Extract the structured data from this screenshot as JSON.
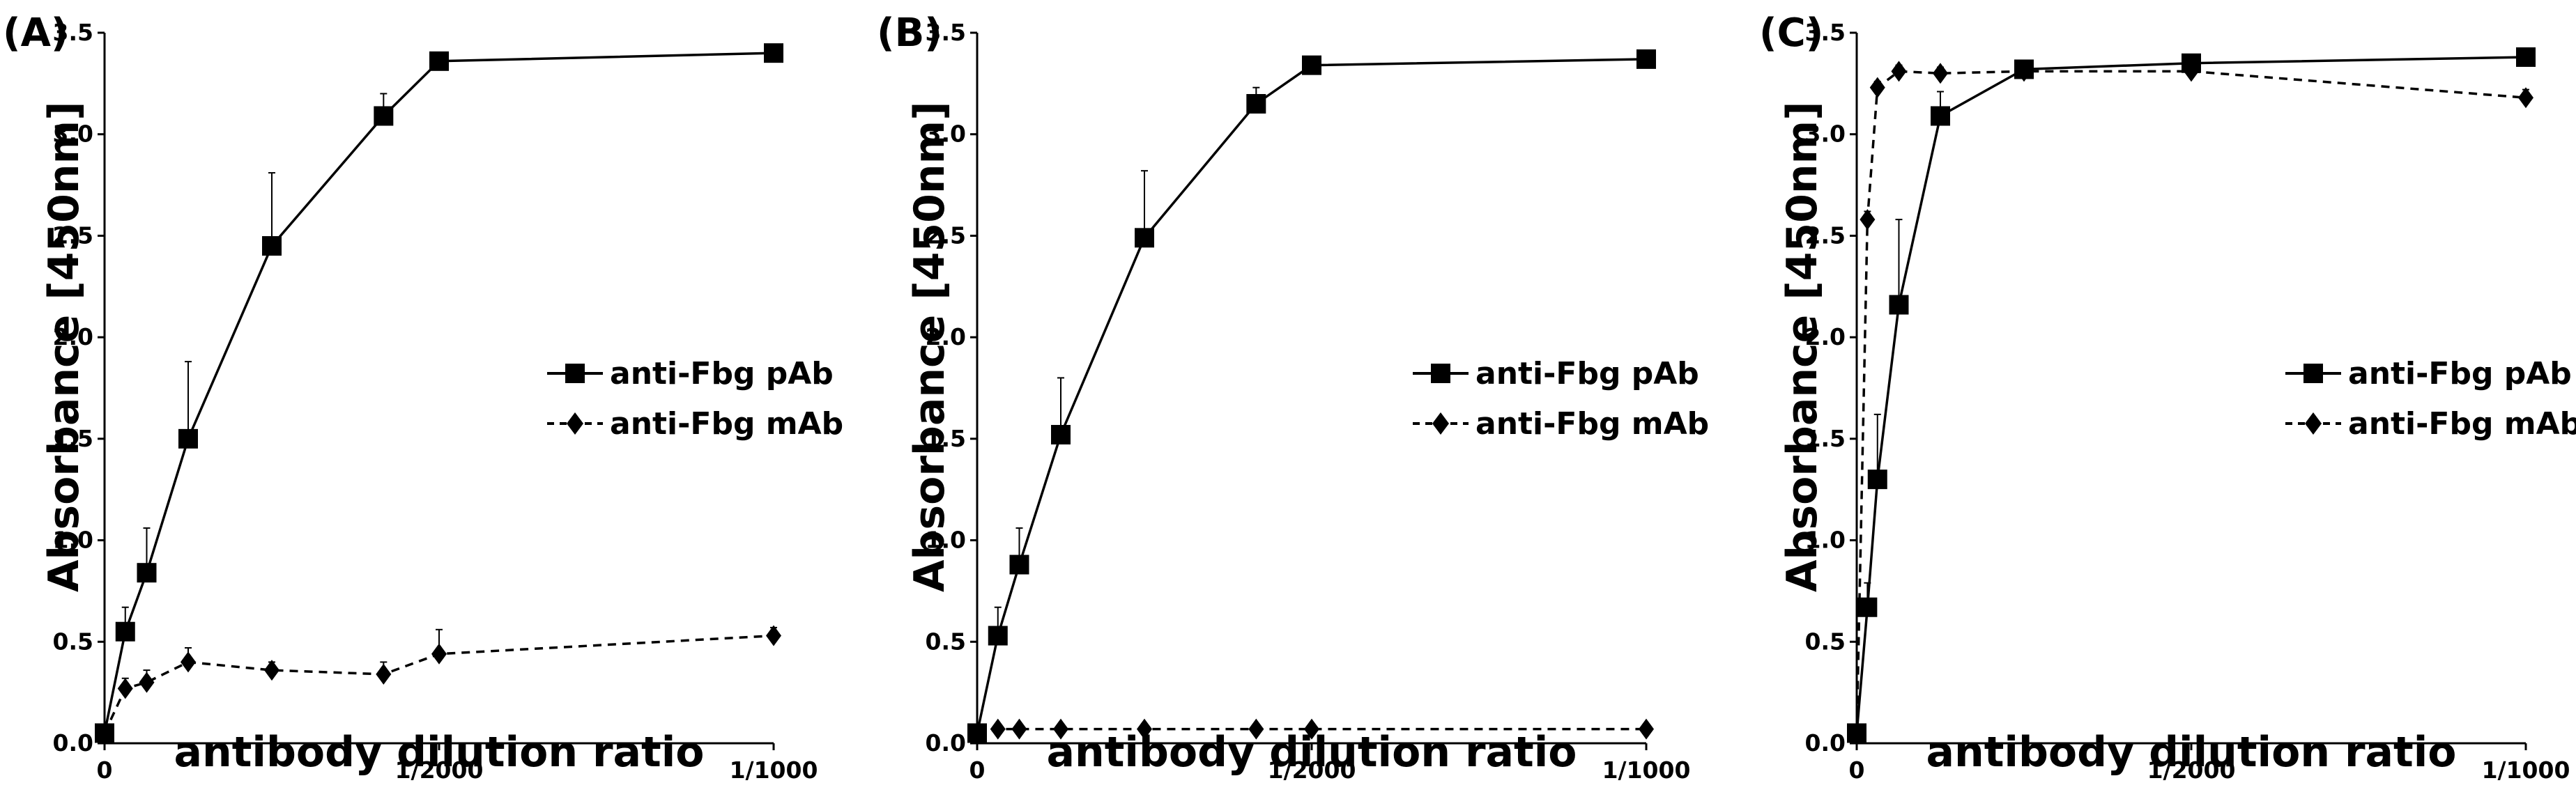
{
  "chart_data": [
    {
      "panel": "(A)",
      "type": "line",
      "ylabel": "Absorbance [450nm]",
      "xlabel": "antibody dilution ratio",
      "ylim": [
        0,
        3.5
      ],
      "yticks": [
        "0.0",
        "0.5",
        "1.0",
        "1.5",
        "2.0",
        "2.5",
        "3.0",
        "3.5"
      ],
      "xlim": [
        0,
        0.001
      ],
      "xticks": [
        {
          "v": 0,
          "label": "0"
        },
        {
          "v": 0.0005,
          "label": "1/2000"
        },
        {
          "v": 0.001,
          "label": "1/1000"
        }
      ],
      "legend_position": "right",
      "series": [
        {
          "name": "anti-Fbg pAb",
          "marker": "square",
          "dash": false,
          "x": [
            0,
            3.1e-05,
            6.3e-05,
            0.000125,
            0.00025,
            0.000417,
            0.0005,
            0.001
          ],
          "y": [
            0.05,
            0.55,
            0.84,
            1.5,
            2.45,
            3.09,
            3.36,
            3.4
          ],
          "err": [
            0.02,
            0.12,
            0.22,
            0.38,
            0.36,
            0.11,
            0.04,
            0.03
          ]
        },
        {
          "name": "anti-Fbg mAb",
          "marker": "diamond",
          "dash": true,
          "x": [
            0,
            3.1e-05,
            6.3e-05,
            0.000125,
            0.00025,
            0.000417,
            0.0005,
            0.001
          ],
          "y": [
            0.05,
            0.27,
            0.3,
            0.4,
            0.36,
            0.34,
            0.44,
            0.53
          ],
          "err": [
            0.02,
            0.05,
            0.06,
            0.07,
            0.04,
            0.06,
            0.12,
            0.04
          ]
        }
      ]
    },
    {
      "panel": "(B)",
      "type": "line",
      "ylabel": "Absorbance [450nm]",
      "xlabel": "antibody dilution ratio",
      "ylim": [
        0,
        3.5
      ],
      "yticks": [
        "0.0",
        "0.5",
        "1.0",
        "1.5",
        "2.0",
        "2.5",
        "3.0",
        "3.5"
      ],
      "xlim": [
        0,
        0.001
      ],
      "xticks": [
        {
          "v": 0,
          "label": "0"
        },
        {
          "v": 0.0005,
          "label": "1/2000"
        },
        {
          "v": 0.001,
          "label": "1/1000"
        }
      ],
      "legend_position": "right",
      "series": [
        {
          "name": "anti-Fbg pAb",
          "marker": "square",
          "dash": false,
          "x": [
            0,
            3.1e-05,
            6.3e-05,
            0.000125,
            0.00025,
            0.000417,
            0.0005,
            0.001
          ],
          "y": [
            0.05,
            0.53,
            0.88,
            1.52,
            2.49,
            3.15,
            3.34,
            3.37
          ],
          "err": [
            0.02,
            0.14,
            0.18,
            0.28,
            0.33,
            0.08,
            0.03,
            0.02
          ]
        },
        {
          "name": "anti-Fbg mAb",
          "marker": "diamond",
          "dash": true,
          "x": [
            0,
            3.1e-05,
            6.3e-05,
            0.000125,
            0.00025,
            0.000417,
            0.0005,
            0.001
          ],
          "y": [
            0.05,
            0.07,
            0.07,
            0.07,
            0.07,
            0.07,
            0.07,
            0.07
          ],
          "err": [
            0.01,
            0.01,
            0.01,
            0.01,
            0.01,
            0.01,
            0.01,
            0.01
          ]
        }
      ]
    },
    {
      "panel": "(C)",
      "type": "line",
      "ylabel": "Absorbance [450nm]",
      "xlabel": "antibody dilution ratio",
      "ylim": [
        0,
        3.5
      ],
      "yticks": [
        "0.0",
        "0.5",
        "1.0",
        "1.5",
        "2.0",
        "2.5",
        "3.0",
        "3.5"
      ],
      "xlim": [
        0,
        0.001
      ],
      "xticks": [
        {
          "v": 0,
          "label": "0"
        },
        {
          "v": 0.0005,
          "label": "1/2000"
        },
        {
          "v": 0.001,
          "label": "1/1000"
        }
      ],
      "legend_position": "right",
      "series": [
        {
          "name": "anti-Fbg pAb",
          "marker": "square",
          "dash": false,
          "x": [
            0,
            1.6e-05,
            3.1e-05,
            6.3e-05,
            0.000125,
            0.00025,
            0.0005,
            0.001
          ],
          "y": [
            0.05,
            0.67,
            1.3,
            2.16,
            3.09,
            3.32,
            3.35,
            3.38
          ],
          "err": [
            0.02,
            0.12,
            0.32,
            0.42,
            0.12,
            0.04,
            0.03,
            0.02
          ]
        },
        {
          "name": "anti-Fbg mAb",
          "marker": "diamond",
          "dash": true,
          "x": [
            0,
            1.6e-05,
            3.1e-05,
            6.3e-05,
            0.000125,
            0.00025,
            0.0005,
            0.001
          ],
          "y": [
            0.05,
            2.58,
            3.23,
            3.31,
            3.3,
            3.31,
            3.31,
            3.18
          ],
          "err": [
            0.02,
            0.04,
            0.03,
            0.03,
            0.03,
            0.03,
            0.03,
            0.04
          ]
        }
      ]
    }
  ]
}
